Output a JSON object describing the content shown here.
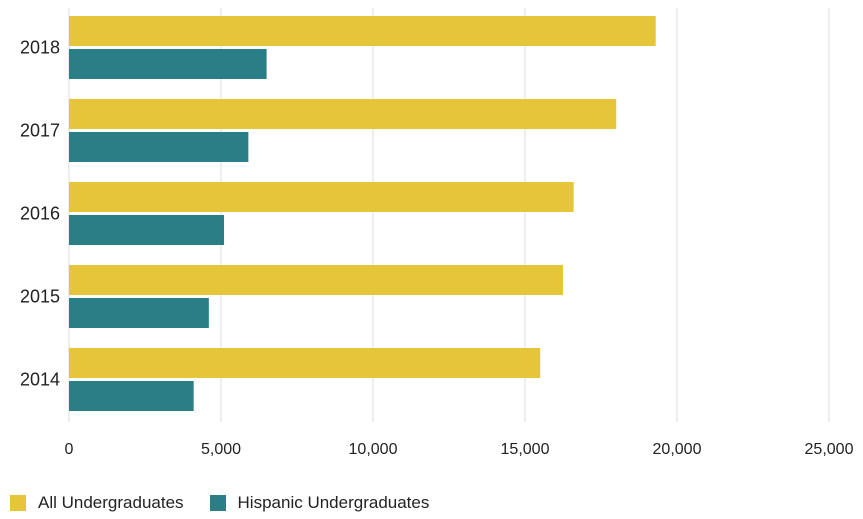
{
  "colors": {
    "all_undergraduates": "#E5C63A",
    "hispanic_undergraduates": "#2A7E86",
    "grid": "#DDDDDD",
    "text": "#222222"
  },
  "chart_data": {
    "type": "bar",
    "orientation": "horizontal",
    "categories": [
      "2018",
      "2017",
      "2016",
      "2015",
      "2014"
    ],
    "series": [
      {
        "name": "All Undergraduates",
        "values": [
          19300,
          18000,
          16600,
          16250,
          15500
        ]
      },
      {
        "name": "Hispanic Undergraduates",
        "values": [
          6500,
          5900,
          5100,
          4600,
          4100
        ]
      }
    ],
    "xlim": [
      0,
      25000
    ],
    "xticks": [
      0,
      5000,
      10000,
      15000,
      20000,
      25000
    ],
    "xtick_labels": [
      "0",
      "5,000",
      "10,000",
      "15,000",
      "20,000",
      "25,000"
    ],
    "grid": true,
    "legend_position": "bottom-left"
  }
}
